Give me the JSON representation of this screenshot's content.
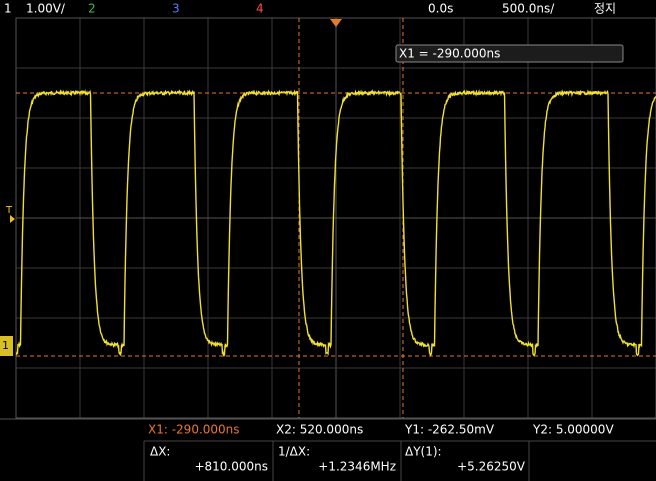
{
  "top_bar": {
    "channel": "1",
    "scale": "1.00V/",
    "ch2": "2",
    "ch3": "3",
    "ch4": "4",
    "delay": "0.0s",
    "timebase": "500.0ns/",
    "status": "정지"
  },
  "screen": {
    "cursor_readout": "X1 = -290.000ns",
    "trigger_label": "T",
    "ground_label": "1"
  },
  "cursors": {
    "x1": "X1: -290.000ns",
    "x2": "X2: 520.000ns",
    "y1": "Y1: -262.50mV",
    "y2": "Y2: 5.00000V"
  },
  "measurements": [
    {
      "label": "ΔX:",
      "value": "+810.000ns"
    },
    {
      "label": "1/ΔX:",
      "value": "+1.2346MHz"
    },
    {
      "label": "ΔY(1):",
      "value": "+5.26250V"
    }
  ]
}
